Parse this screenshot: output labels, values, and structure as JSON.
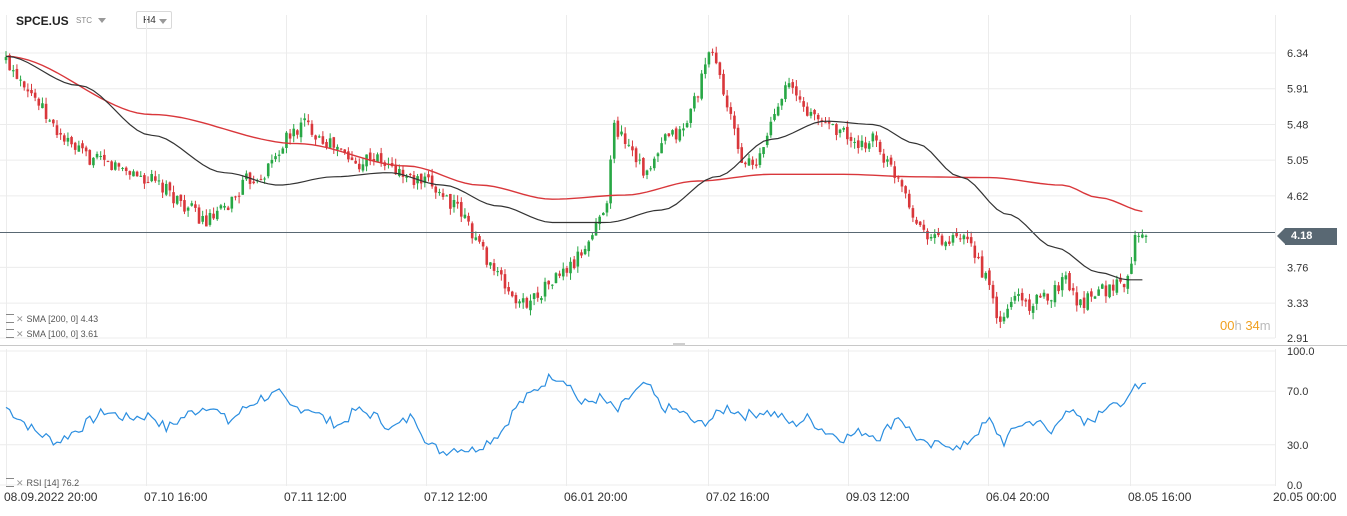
{
  "header": {
    "symbol": "SPCE.US",
    "symbol_sub": "STC",
    "timeframe": "H4"
  },
  "price_pane": {
    "current_price": "4.18",
    "countdown": {
      "hours": "00",
      "hours_unit": "h",
      "minutes": "34",
      "minutes_unit": "m"
    },
    "indicators": [
      {
        "label": "SMA",
        "params": "[200,  0]",
        "value": "4.43",
        "color": "#d9373b"
      },
      {
        "label": "SMA",
        "params": "[100,  0]",
        "value": "3.61",
        "color": "#333333"
      }
    ]
  },
  "rsi_pane": {
    "label": "RSI",
    "params": "[14]",
    "value": "76.2",
    "color": "#2b8ee0"
  },
  "colors": {
    "up": "#28a745",
    "down": "#d9373b",
    "grid": "#ececec",
    "price_line": "#596873"
  },
  "chart_data": [
    {
      "type": "candlestick",
      "title": "SPCE.US",
      "y_ticks": [
        "6.34",
        "5.91",
        "5.48",
        "5.05",
        "4.62",
        "4.18",
        "3.76",
        "3.33",
        "2.91"
      ],
      "ylim": [
        2.91,
        6.6
      ],
      "x_ticks": [
        "08.09.2022  20:00",
        "07.10  16:00",
        "07.11  12:00",
        "07.12  12:00",
        "06.01  20:00",
        "07.02  16:00",
        "09.03  12:00",
        "06.04  20:00",
        "08.05  16:00",
        "20.05  00:00"
      ],
      "close_path": [
        [
          0,
          6.25
        ],
        [
          6,
          5.95
        ],
        [
          12,
          5.5
        ],
        [
          18,
          5.2
        ],
        [
          24,
          5.05
        ],
        [
          32,
          4.95
        ],
        [
          40,
          4.8
        ],
        [
          48,
          4.55
        ],
        [
          55,
          4.3
        ],
        [
          60,
          4.45
        ],
        [
          66,
          4.8
        ],
        [
          71,
          4.9
        ],
        [
          77,
          5.3
        ],
        [
          82,
          5.5
        ],
        [
          86,
          5.35
        ],
        [
          92,
          5.15
        ],
        [
          96,
          5.0
        ],
        [
          100,
          5.1
        ],
        [
          106,
          4.95
        ],
        [
          112,
          4.8
        ],
        [
          117,
          4.75
        ],
        [
          121,
          4.6
        ],
        [
          126,
          4.35
        ],
        [
          131,
          3.95
        ],
        [
          136,
          3.6
        ],
        [
          141,
          3.3
        ],
        [
          145,
          3.4
        ],
        [
          150,
          3.6
        ],
        [
          156,
          3.8
        ],
        [
          161,
          4.15
        ],
        [
          165,
          4.6
        ],
        [
          167,
          5.45
        ],
        [
          172,
          5.2
        ],
        [
          176,
          4.85
        ],
        [
          181,
          5.3
        ],
        [
          186,
          5.4
        ],
        [
          190,
          5.9
        ],
        [
          194,
          6.4
        ],
        [
          198,
          5.7
        ],
        [
          202,
          5.05
        ],
        [
          206,
          4.95
        ],
        [
          210,
          5.5
        ],
        [
          214,
          6.0
        ],
        [
          218,
          5.75
        ],
        [
          222,
          5.55
        ],
        [
          226,
          5.5
        ],
        [
          231,
          5.35
        ],
        [
          234,
          5.15
        ],
        [
          238,
          5.35
        ],
        [
          242,
          5.0
        ],
        [
          246,
          4.8
        ],
        [
          250,
          4.3
        ],
        [
          254,
          4.15
        ],
        [
          258,
          4.05
        ],
        [
          262,
          4.1
        ],
        [
          266,
          3.95
        ],
        [
          270,
          3.5
        ],
        [
          273,
          3.05
        ],
        [
          277,
          3.45
        ],
        [
          281,
          3.3
        ],
        [
          286,
          3.4
        ],
        [
          291,
          3.65
        ],
        [
          295,
          3.3
        ],
        [
          299,
          3.5
        ],
        [
          303,
          3.5
        ],
        [
          306,
          3.6
        ],
        [
          308,
          3.58
        ],
        [
          310,
          4.2
        ],
        [
          313,
          4.2
        ]
      ],
      "series": [
        {
          "name": "SMA [200, 0]",
          "points": [
            [
              0,
              6.3
            ],
            [
              40,
              5.6
            ],
            [
              80,
              5.25
            ],
            [
              110,
              4.98
            ],
            [
              130,
              4.75
            ],
            [
              150,
              4.58
            ],
            [
              170,
              4.63
            ],
            [
              190,
              4.8
            ],
            [
              210,
              4.88
            ],
            [
              230,
              4.88
            ],
            [
              250,
              4.85
            ],
            [
              270,
              4.84
            ],
            [
              290,
              4.75
            ],
            [
              300,
              4.6
            ],
            [
              313,
              4.43
            ]
          ]
        },
        {
          "name": "SMA [100, 0]",
          "points": [
            [
              0,
              6.3
            ],
            [
              20,
              5.95
            ],
            [
              40,
              5.35
            ],
            [
              60,
              4.9
            ],
            [
              75,
              4.75
            ],
            [
              90,
              4.85
            ],
            [
              105,
              4.9
            ],
            [
              120,
              4.75
            ],
            [
              135,
              4.5
            ],
            [
              150,
              4.3
            ],
            [
              165,
              4.3
            ],
            [
              180,
              4.45
            ],
            [
              195,
              4.85
            ],
            [
              210,
              5.3
            ],
            [
              225,
              5.52
            ],
            [
              238,
              5.48
            ],
            [
              250,
              5.25
            ],
            [
              262,
              4.85
            ],
            [
              275,
              4.4
            ],
            [
              288,
              4.0
            ],
            [
              300,
              3.7
            ],
            [
              308,
              3.61
            ],
            [
              313,
              3.61
            ]
          ]
        }
      ]
    },
    {
      "type": "line",
      "title": "RSI [14]",
      "y_ticks": [
        "100.0",
        "70.0",
        "30.0",
        "0.0"
      ],
      "ylim": [
        0,
        100
      ],
      "series": [
        {
          "name": "RSI [14]",
          "points": [
            [
              0,
              58
            ],
            [
              8,
              40
            ],
            [
              14,
              32
            ],
            [
              20,
              42
            ],
            [
              27,
              55
            ],
            [
              33,
              50
            ],
            [
              40,
              52
            ],
            [
              44,
              42
            ],
            [
              50,
              53
            ],
            [
              56,
              60
            ],
            [
              61,
              47
            ],
            [
              66,
              58
            ],
            [
              70,
              65
            ],
            [
              75,
              68
            ],
            [
              78,
              58
            ],
            [
              84,
              57
            ],
            [
              88,
              48
            ],
            [
              92,
              45
            ],
            [
              96,
              56
            ],
            [
              101,
              52
            ],
            [
              106,
              42
            ],
            [
              112,
              52
            ],
            [
              116,
              30
            ],
            [
              120,
              25
            ],
            [
              124,
              28
            ],
            [
              128,
              26
            ],
            [
              132,
              32
            ],
            [
              136,
              40
            ],
            [
              140,
              58
            ],
            [
              145,
              70
            ],
            [
              150,
              82
            ],
            [
              154,
              78
            ],
            [
              158,
              60
            ],
            [
              163,
              65
            ],
            [
              168,
              55
            ],
            [
              172,
              68
            ],
            [
              176,
              75
            ],
            [
              180,
              58
            ],
            [
              185,
              55
            ],
            [
              190,
              45
            ],
            [
              194,
              50
            ],
            [
              198,
              58
            ],
            [
              203,
              52
            ],
            [
              208,
              55
            ],
            [
              212,
              52
            ],
            [
              216,
              45
            ],
            [
              220,
              50
            ],
            [
              225,
              40
            ],
            [
              230,
              35
            ],
            [
              235,
              40
            ],
            [
              240,
              36
            ],
            [
              245,
              52
            ],
            [
              249,
              38
            ],
            [
              253,
              28
            ],
            [
              258,
              32
            ],
            [
              262,
              26
            ],
            [
              266,
              38
            ],
            [
              270,
              48
            ],
            [
              274,
              32
            ],
            [
              278,
              45
            ],
            [
              283,
              48
            ],
            [
              287,
              38
            ],
            [
              291,
              58
            ],
            [
              296,
              45
            ],
            [
              300,
              52
            ],
            [
              304,
              65
            ],
            [
              307,
              57
            ],
            [
              310,
              75
            ],
            [
              313,
              76
            ]
          ]
        }
      ]
    }
  ]
}
